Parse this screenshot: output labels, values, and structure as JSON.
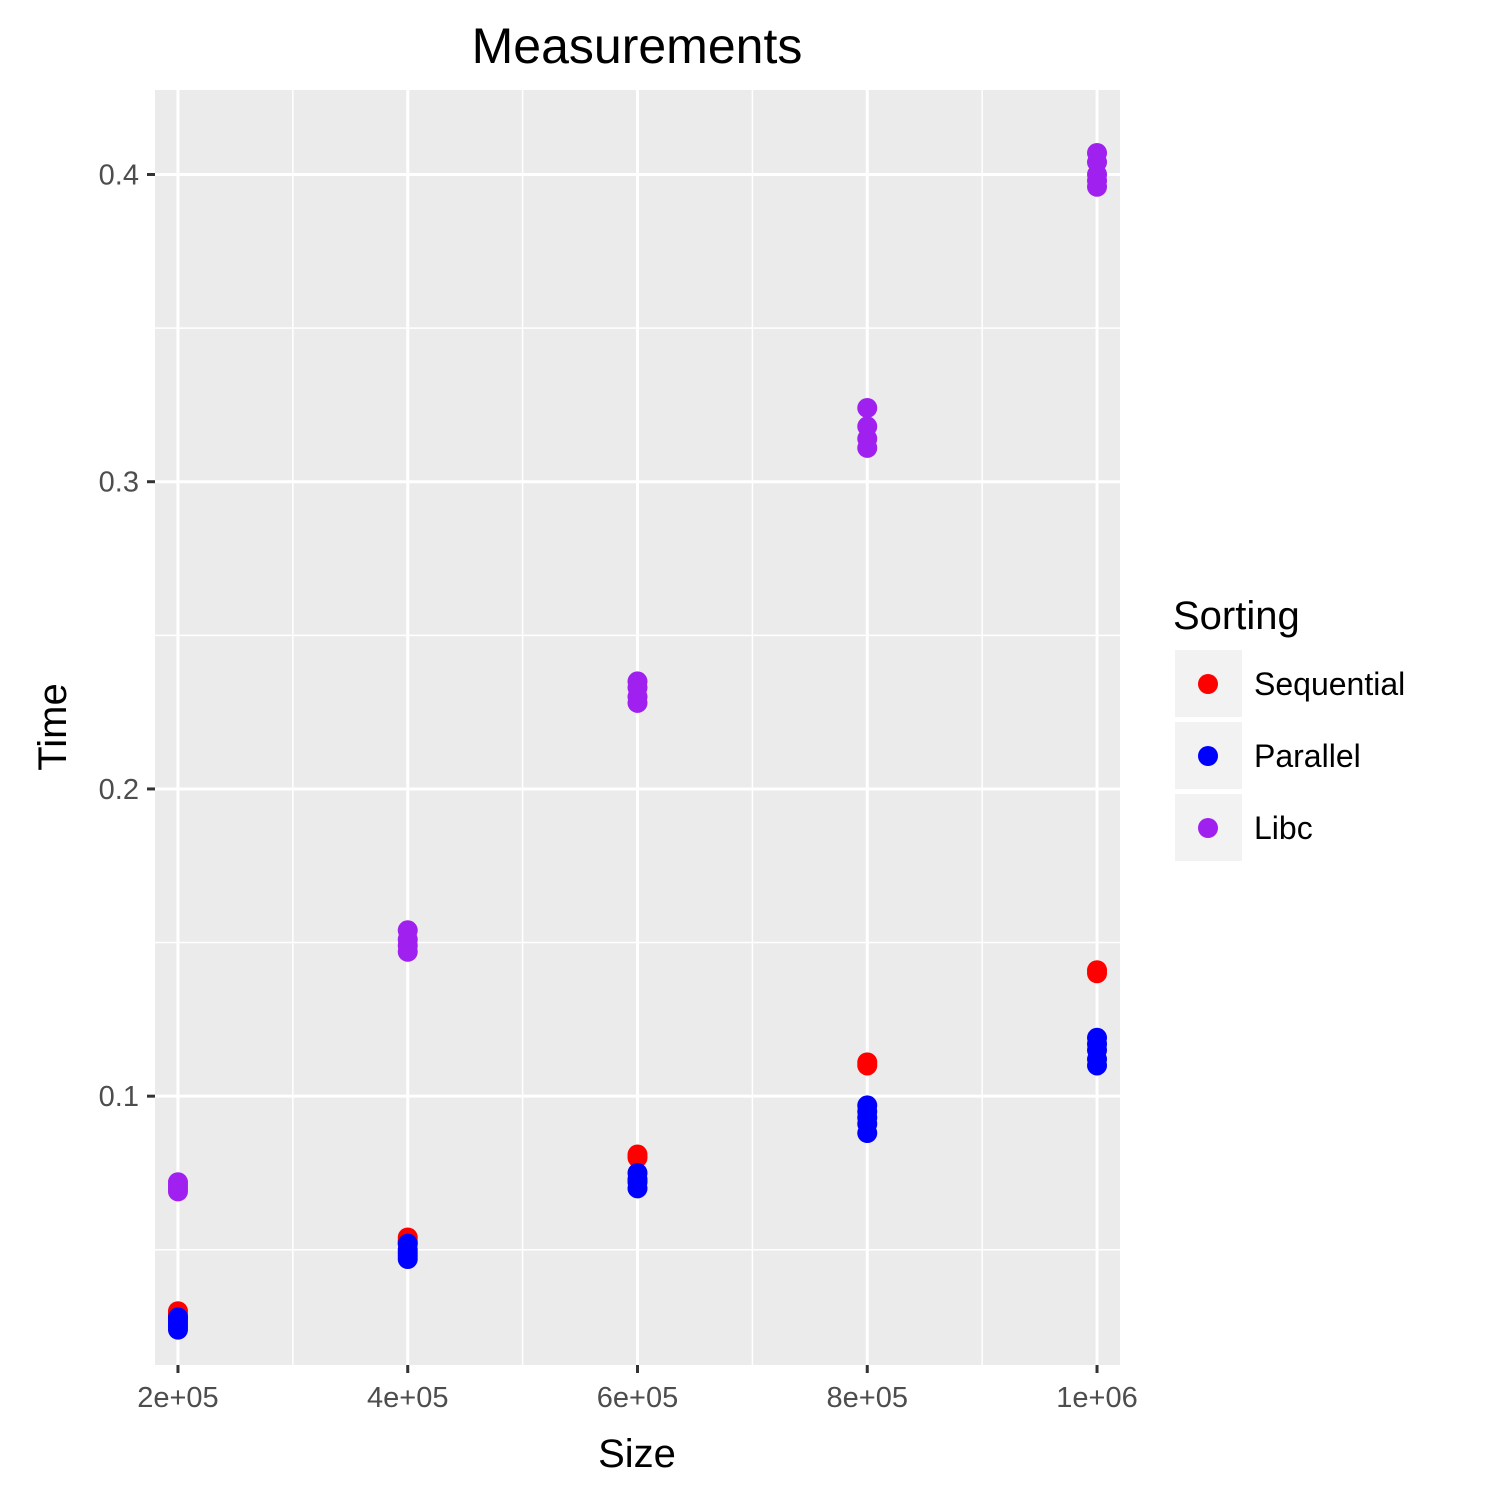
{
  "chart_data": {
    "type": "scatter",
    "title": "Measurements",
    "xlabel": "Size",
    "ylabel": "Time",
    "xlim": [
      180000,
      1020000
    ],
    "ylim": [
      0.0125,
      0.4275
    ],
    "x_ticks": [
      200000,
      400000,
      600000,
      800000,
      1000000
    ],
    "x_tick_labels": [
      "2e+05",
      "4e+05",
      "6e+05",
      "8e+05",
      "1e+06"
    ],
    "y_ticks": [
      0.1,
      0.2,
      0.3,
      0.4
    ],
    "y_tick_labels": [
      "0.1",
      "0.2",
      "0.3",
      "0.4"
    ],
    "grid": true,
    "legend": {
      "title": "Sorting",
      "position": "right"
    },
    "series": [
      {
        "name": "Sequential",
        "color": "#ff0000",
        "points": [
          [
            200000,
            0.03
          ],
          [
            200000,
            0.029
          ],
          [
            200000,
            0.028
          ],
          [
            400000,
            0.054
          ],
          [
            400000,
            0.053
          ],
          [
            400000,
            0.052
          ],
          [
            600000,
            0.081
          ],
          [
            600000,
            0.08
          ],
          [
            800000,
            0.111
          ],
          [
            800000,
            0.11
          ],
          [
            1000000,
            0.141
          ],
          [
            1000000,
            0.14
          ]
        ]
      },
      {
        "name": "Parallel",
        "color": "#0000ff",
        "points": [
          [
            200000,
            0.028
          ],
          [
            200000,
            0.027
          ],
          [
            200000,
            0.026
          ],
          [
            200000,
            0.025
          ],
          [
            200000,
            0.024
          ],
          [
            400000,
            0.052
          ],
          [
            400000,
            0.05
          ],
          [
            400000,
            0.049
          ],
          [
            400000,
            0.048
          ],
          [
            400000,
            0.047
          ],
          [
            600000,
            0.075
          ],
          [
            600000,
            0.073
          ],
          [
            600000,
            0.072
          ],
          [
            600000,
            0.07
          ],
          [
            800000,
            0.097
          ],
          [
            800000,
            0.095
          ],
          [
            800000,
            0.093
          ],
          [
            800000,
            0.091
          ],
          [
            800000,
            0.088
          ],
          [
            1000000,
            0.119
          ],
          [
            1000000,
            0.117
          ],
          [
            1000000,
            0.115
          ],
          [
            1000000,
            0.112
          ],
          [
            1000000,
            0.11
          ]
        ]
      },
      {
        "name": "Libc",
        "color": "#a020f0",
        "points": [
          [
            200000,
            0.072
          ],
          [
            200000,
            0.071
          ],
          [
            200000,
            0.07
          ],
          [
            200000,
            0.069
          ],
          [
            400000,
            0.154
          ],
          [
            400000,
            0.151
          ],
          [
            400000,
            0.149
          ],
          [
            400000,
            0.147
          ],
          [
            600000,
            0.235
          ],
          [
            600000,
            0.233
          ],
          [
            600000,
            0.23
          ],
          [
            600000,
            0.228
          ],
          [
            800000,
            0.324
          ],
          [
            800000,
            0.318
          ],
          [
            800000,
            0.314
          ],
          [
            800000,
            0.311
          ],
          [
            1000000,
            0.407
          ],
          [
            1000000,
            0.404
          ],
          [
            1000000,
            0.4
          ],
          [
            1000000,
            0.398
          ],
          [
            1000000,
            0.396
          ]
        ]
      }
    ]
  }
}
